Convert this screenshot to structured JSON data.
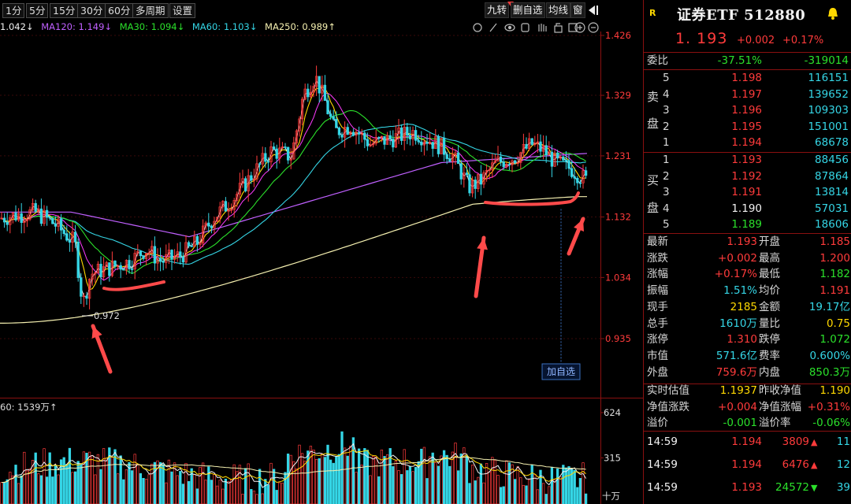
{
  "toolbar": {
    "periods": [
      "1分",
      "5分",
      "15分",
      "30分",
      "60分",
      "多周期",
      "设置"
    ],
    "right_buttons": [
      "九转",
      "删自选",
      "均线",
      "窗"
    ]
  },
  "ma_legend": {
    "ma5": "1.042↓",
    "ma120": "MA120: 1.149↓",
    "ma30": "MA30: 1.094↓",
    "ma60": "MA60: 1.103↓",
    "ma250": "MA250: 0.989↑"
  },
  "price_axis": [
    "1.426",
    "1.329",
    "1.231",
    "1.132",
    "1.034",
    "0.935"
  ],
  "volume_axis": [
    "624",
    "315",
    "十万"
  ],
  "low_marker": "0.972",
  "add_watch_label": "加自选",
  "volume_legend": "60: 1539万↑",
  "colors": {
    "up": "#ff3b3b",
    "down": "#2be02b",
    "ma5": "#f2f2f2",
    "ma10": "#ffd800",
    "ma20": "#ff3bff",
    "ma30": "#2be02b",
    "ma60": "#35d6e6",
    "ma120": "#c060ff",
    "ma250": "#f5f0b0"
  },
  "quote": {
    "title": "证券ETF 512880",
    "badge": "R",
    "price": "1. 193",
    "change": "+0.002",
    "change_pct": "+0.17%",
    "webi_label": "委比",
    "webi_pct": "-37.51%",
    "webi_diff": "-319014",
    "sell_label_1": "卖",
    "sell_label_2": "盘",
    "buy_label_1": "买",
    "buy_label_2": "盘",
    "asks": [
      {
        "level": "5",
        "price": "1.198",
        "vol": "116151"
      },
      {
        "level": "4",
        "price": "1.197",
        "vol": "139652"
      },
      {
        "level": "3",
        "price": "1.196",
        "vol": "109303"
      },
      {
        "level": "2",
        "price": "1.195",
        "vol": "151001"
      },
      {
        "level": "1",
        "price": "1.194",
        "vol": "68678"
      }
    ],
    "bids": [
      {
        "level": "1",
        "price": "1.193",
        "vol": "88456"
      },
      {
        "level": "2",
        "price": "1.192",
        "vol": "87864"
      },
      {
        "level": "3",
        "price": "1.191",
        "vol": "13814"
      },
      {
        "level": "4",
        "price": "1.190",
        "vol": "57031"
      },
      {
        "level": "5",
        "price": "1.189",
        "vol": "18606"
      }
    ],
    "stats": [
      {
        "l1": "最新",
        "v1": "1.193",
        "l2": "开盘",
        "v2": "1.185"
      },
      {
        "l1": "涨跌",
        "v1": "+0.002",
        "l2": "最高",
        "v2": "1.200"
      },
      {
        "l1": "涨幅",
        "v1": "+0.17%",
        "l2": "最低",
        "v2": "1.182"
      },
      {
        "l1": "振幅",
        "v1": "1.51%",
        "l2": "均价",
        "v2": "1.191"
      },
      {
        "l1": "现手",
        "v1": "2185",
        "l2": "金额",
        "v2": "19.17亿"
      },
      {
        "l1": "总手",
        "v1": "1610万",
        "l2": "量比",
        "v2": "0.75"
      },
      {
        "l1": "涨停",
        "v1": "1.310",
        "l2": "跌停",
        "v2": "1.072"
      },
      {
        "l1": "市值",
        "v1": "571.6亿",
        "l2": "费率",
        "v2": "0.600%"
      },
      {
        "l1": "外盘",
        "v1": "759.6万",
        "l2": "内盘",
        "v2": "850.3万"
      }
    ],
    "nav": [
      {
        "l1": "实时估值",
        "v1": "1.1937",
        "l2": "昨收净值",
        "v2": "1.190"
      },
      {
        "l1": "净值涨跌",
        "v1": "+0.004",
        "l2": "净值涨幅",
        "v2": "+0.31%"
      },
      {
        "l1": "溢价",
        "v1": "-0.001",
        "l2": "溢价率",
        "v2": "-0.06%"
      }
    ],
    "ticks": [
      {
        "time": "14:59",
        "price": "1.194",
        "vol": "3809",
        "count": "11",
        "dir": "up"
      },
      {
        "time": "14:59",
        "price": "1.194",
        "vol": "6476",
        "count": "12",
        "dir": "up"
      },
      {
        "time": "14:59",
        "price": "1.193",
        "vol": "24572",
        "count": "39",
        "dir": "down"
      }
    ]
  }
}
